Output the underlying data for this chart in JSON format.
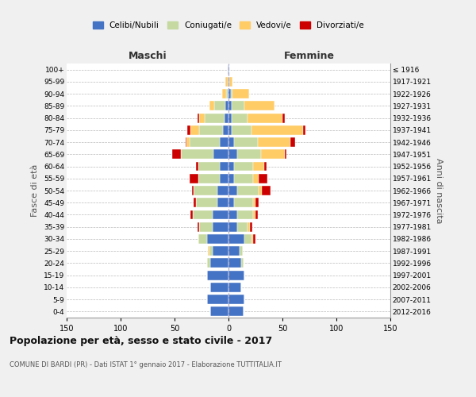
{
  "age_groups": [
    "0-4",
    "5-9",
    "10-14",
    "15-19",
    "20-24",
    "25-29",
    "30-34",
    "35-39",
    "40-44",
    "45-49",
    "50-54",
    "55-59",
    "60-64",
    "65-69",
    "70-74",
    "75-79",
    "80-84",
    "85-89",
    "90-94",
    "95-99",
    "100+"
  ],
  "birth_years": [
    "2012-2016",
    "2007-2011",
    "2002-2006",
    "1997-2001",
    "1992-1996",
    "1987-1991",
    "1982-1986",
    "1977-1981",
    "1972-1976",
    "1967-1971",
    "1962-1966",
    "1957-1961",
    "1952-1956",
    "1947-1951",
    "1942-1946",
    "1937-1941",
    "1932-1936",
    "1927-1931",
    "1922-1926",
    "1917-1921",
    "≤ 1916"
  ],
  "male": {
    "celibi": [
      17,
      20,
      17,
      20,
      17,
      15,
      20,
      15,
      15,
      10,
      10,
      8,
      8,
      14,
      8,
      5,
      4,
      3,
      1,
      1,
      1
    ],
    "coniugati": [
      0,
      0,
      0,
      0,
      3,
      3,
      8,
      12,
      18,
      20,
      22,
      20,
      20,
      30,
      28,
      22,
      18,
      10,
      1,
      0,
      0
    ],
    "vedovi": [
      0,
      0,
      0,
      0,
      0,
      1,
      0,
      0,
      0,
      0,
      0,
      0,
      0,
      0,
      3,
      8,
      5,
      5,
      4,
      2,
      0
    ],
    "divorziati": [
      0,
      0,
      0,
      0,
      0,
      0,
      0,
      2,
      2,
      2,
      2,
      8,
      2,
      8,
      1,
      3,
      2,
      0,
      0,
      0,
      0
    ]
  },
  "female": {
    "nubili": [
      14,
      15,
      12,
      15,
      12,
      10,
      15,
      8,
      8,
      5,
      8,
      5,
      5,
      8,
      5,
      3,
      3,
      3,
      2,
      1,
      1
    ],
    "coniugate": [
      0,
      0,
      0,
      0,
      2,
      3,
      6,
      10,
      15,
      18,
      20,
      18,
      18,
      22,
      22,
      18,
      15,
      12,
      2,
      0,
      0
    ],
    "vedove": [
      0,
      0,
      0,
      0,
      0,
      0,
      2,
      2,
      2,
      2,
      3,
      5,
      10,
      22,
      30,
      48,
      32,
      28,
      15,
      3,
      0
    ],
    "divorziate": [
      0,
      0,
      0,
      0,
      0,
      0,
      2,
      2,
      2,
      3,
      8,
      8,
      2,
      2,
      5,
      2,
      2,
      0,
      0,
      0,
      0
    ]
  },
  "colors": {
    "celibi": "#4472C4",
    "coniugati": "#C5D9A0",
    "vedovi": "#FFCC66",
    "divorziati": "#CC0000"
  },
  "title": "Popolazione per età, sesso e stato civile - 2017",
  "subtitle": "COMUNE DI BARDI (PR) - Dati ISTAT 1° gennaio 2017 - Elaborazione TUTTITALIA.IT",
  "xlabel_left": "Maschi",
  "xlabel_right": "Femmine",
  "ylabel_left": "Fasce di età",
  "ylabel_right": "Anni di nascita",
  "xlim": 150,
  "background_color": "#f0f0f0",
  "plot_bg": "#ffffff",
  "legend_labels": [
    "Celibi/Nubili",
    "Coniugati/e",
    "Vedovi/e",
    "Divorziati/e"
  ]
}
